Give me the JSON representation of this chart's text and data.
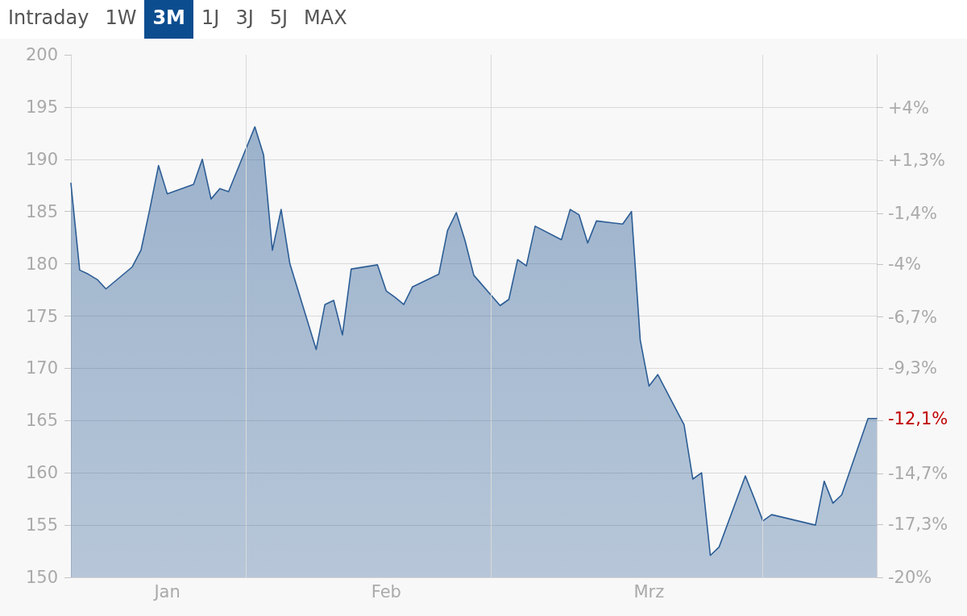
{
  "chart_data": {
    "type": "area",
    "annotations": [
      "Intraday",
      "1W",
      "3M",
      "1J",
      "3J",
      "5J",
      "MAX",
      {
        "text": "-12,1%",
        "x": "--04-14",
        "y": 165.2
      }
    ],
    "x": [
      "--01-12",
      "--01-13",
      "--01-14",
      "--01-15",
      "--01-16",
      "--01-19",
      "--01-20",
      "--01-21",
      "--01-22",
      "--01-23",
      "--01-26",
      "--01-27",
      "--01-28",
      "--01-29",
      "--01-30",
      "--02-02",
      "--02-03",
      "--02-04",
      "--02-05",
      "--02-06",
      "--02-09",
      "--02-10",
      "--02-11",
      "--02-12",
      "--02-13",
      "--02-16",
      "--02-17",
      "--02-18",
      "--02-19",
      "--02-20",
      "--02-23",
      "--02-24",
      "--02-25",
      "--02-26",
      "--02-27",
      "--03-02",
      "--03-03",
      "--03-04",
      "--03-05",
      "--03-06",
      "--03-09",
      "--03-10",
      "--03-11",
      "--03-12",
      "--03-13",
      "--03-16",
      "--03-17",
      "--03-18",
      "--03-19",
      "--03-20",
      "--03-23",
      "--03-24",
      "--03-25",
      "--03-26",
      "--03-27",
      "--03-30",
      "--03-31",
      "--04-01",
      "--04-02",
      "--04-07",
      "--04-08",
      "--04-09",
      "--04-10",
      "--04-13",
      "--04-14"
    ],
    "values": [
      187.7,
      179.4,
      179.0,
      178.5,
      177.6,
      179.7,
      181.3,
      185.2,
      189.4,
      186.7,
      187.6,
      190.0,
      186.2,
      187.2,
      186.9,
      193.1,
      190.4,
      181.3,
      185.2,
      180.0,
      171.8,
      176.1,
      176.5,
      173.2,
      179.5,
      179.9,
      177.4,
      176.8,
      176.1,
      177.8,
      179.0,
      183.2,
      184.9,
      182.2,
      178.9,
      176.0,
      176.6,
      180.4,
      179.8,
      183.6,
      182.3,
      185.2,
      184.7,
      182.0,
      184.1,
      183.8,
      185.0,
      172.7,
      168.3,
      169.4,
      164.6,
      159.4,
      160.0,
      152.1,
      152.9,
      159.7,
      157.6,
      155.4,
      156.0,
      155.0,
      159.2,
      157.1,
      157.9,
      165.2,
      165.2
    ],
    "color": "#2c5d95",
    "xlim": [
      "--01-12",
      "--04-14"
    ],
    "xticks": [
      {
        "value": "--01-23",
        "label": "Jan"
      },
      {
        "value": "--02-17",
        "label": "Feb"
      },
      {
        "value": "--03-19",
        "label": "Mrz"
      }
    ],
    "ylim": [
      150,
      200
    ],
    "yticks": [
      150,
      155,
      160,
      165,
      170,
      175,
      180,
      185,
      190,
      195,
      200
    ],
    "y2lim": [
      -20,
      6.7
    ],
    "y2ticks": [
      {
        "value": -20,
        "label": "-20%"
      },
      {
        "value": -17.3,
        "label": "-17,3%"
      },
      {
        "value": -14.7,
        "label": "-14,7%"
      },
      {
        "value": -12,
        "label": null
      },
      {
        "value": -9.3,
        "label": "-9,3%"
      },
      {
        "value": -6.7,
        "label": "-6,7%"
      },
      {
        "value": -4,
        "label": "-4%"
      },
      {
        "value": -1.4,
        "label": "-1,4%"
      },
      {
        "value": 1.3,
        "label": "+1,3%"
      },
      {
        "value": 4,
        "label": "+4%"
      }
    ],
    "ref_lines": [
      {
        "axis": "x",
        "value": "--02-01",
        "color": "#d9d9d9"
      },
      {
        "axis": "x",
        "value": "--03-01",
        "color": "#d9d9d9"
      },
      {
        "axis": "x",
        "value": "--04-01",
        "color": "#d9d9d9"
      }
    ],
    "grid": "y"
  }
}
